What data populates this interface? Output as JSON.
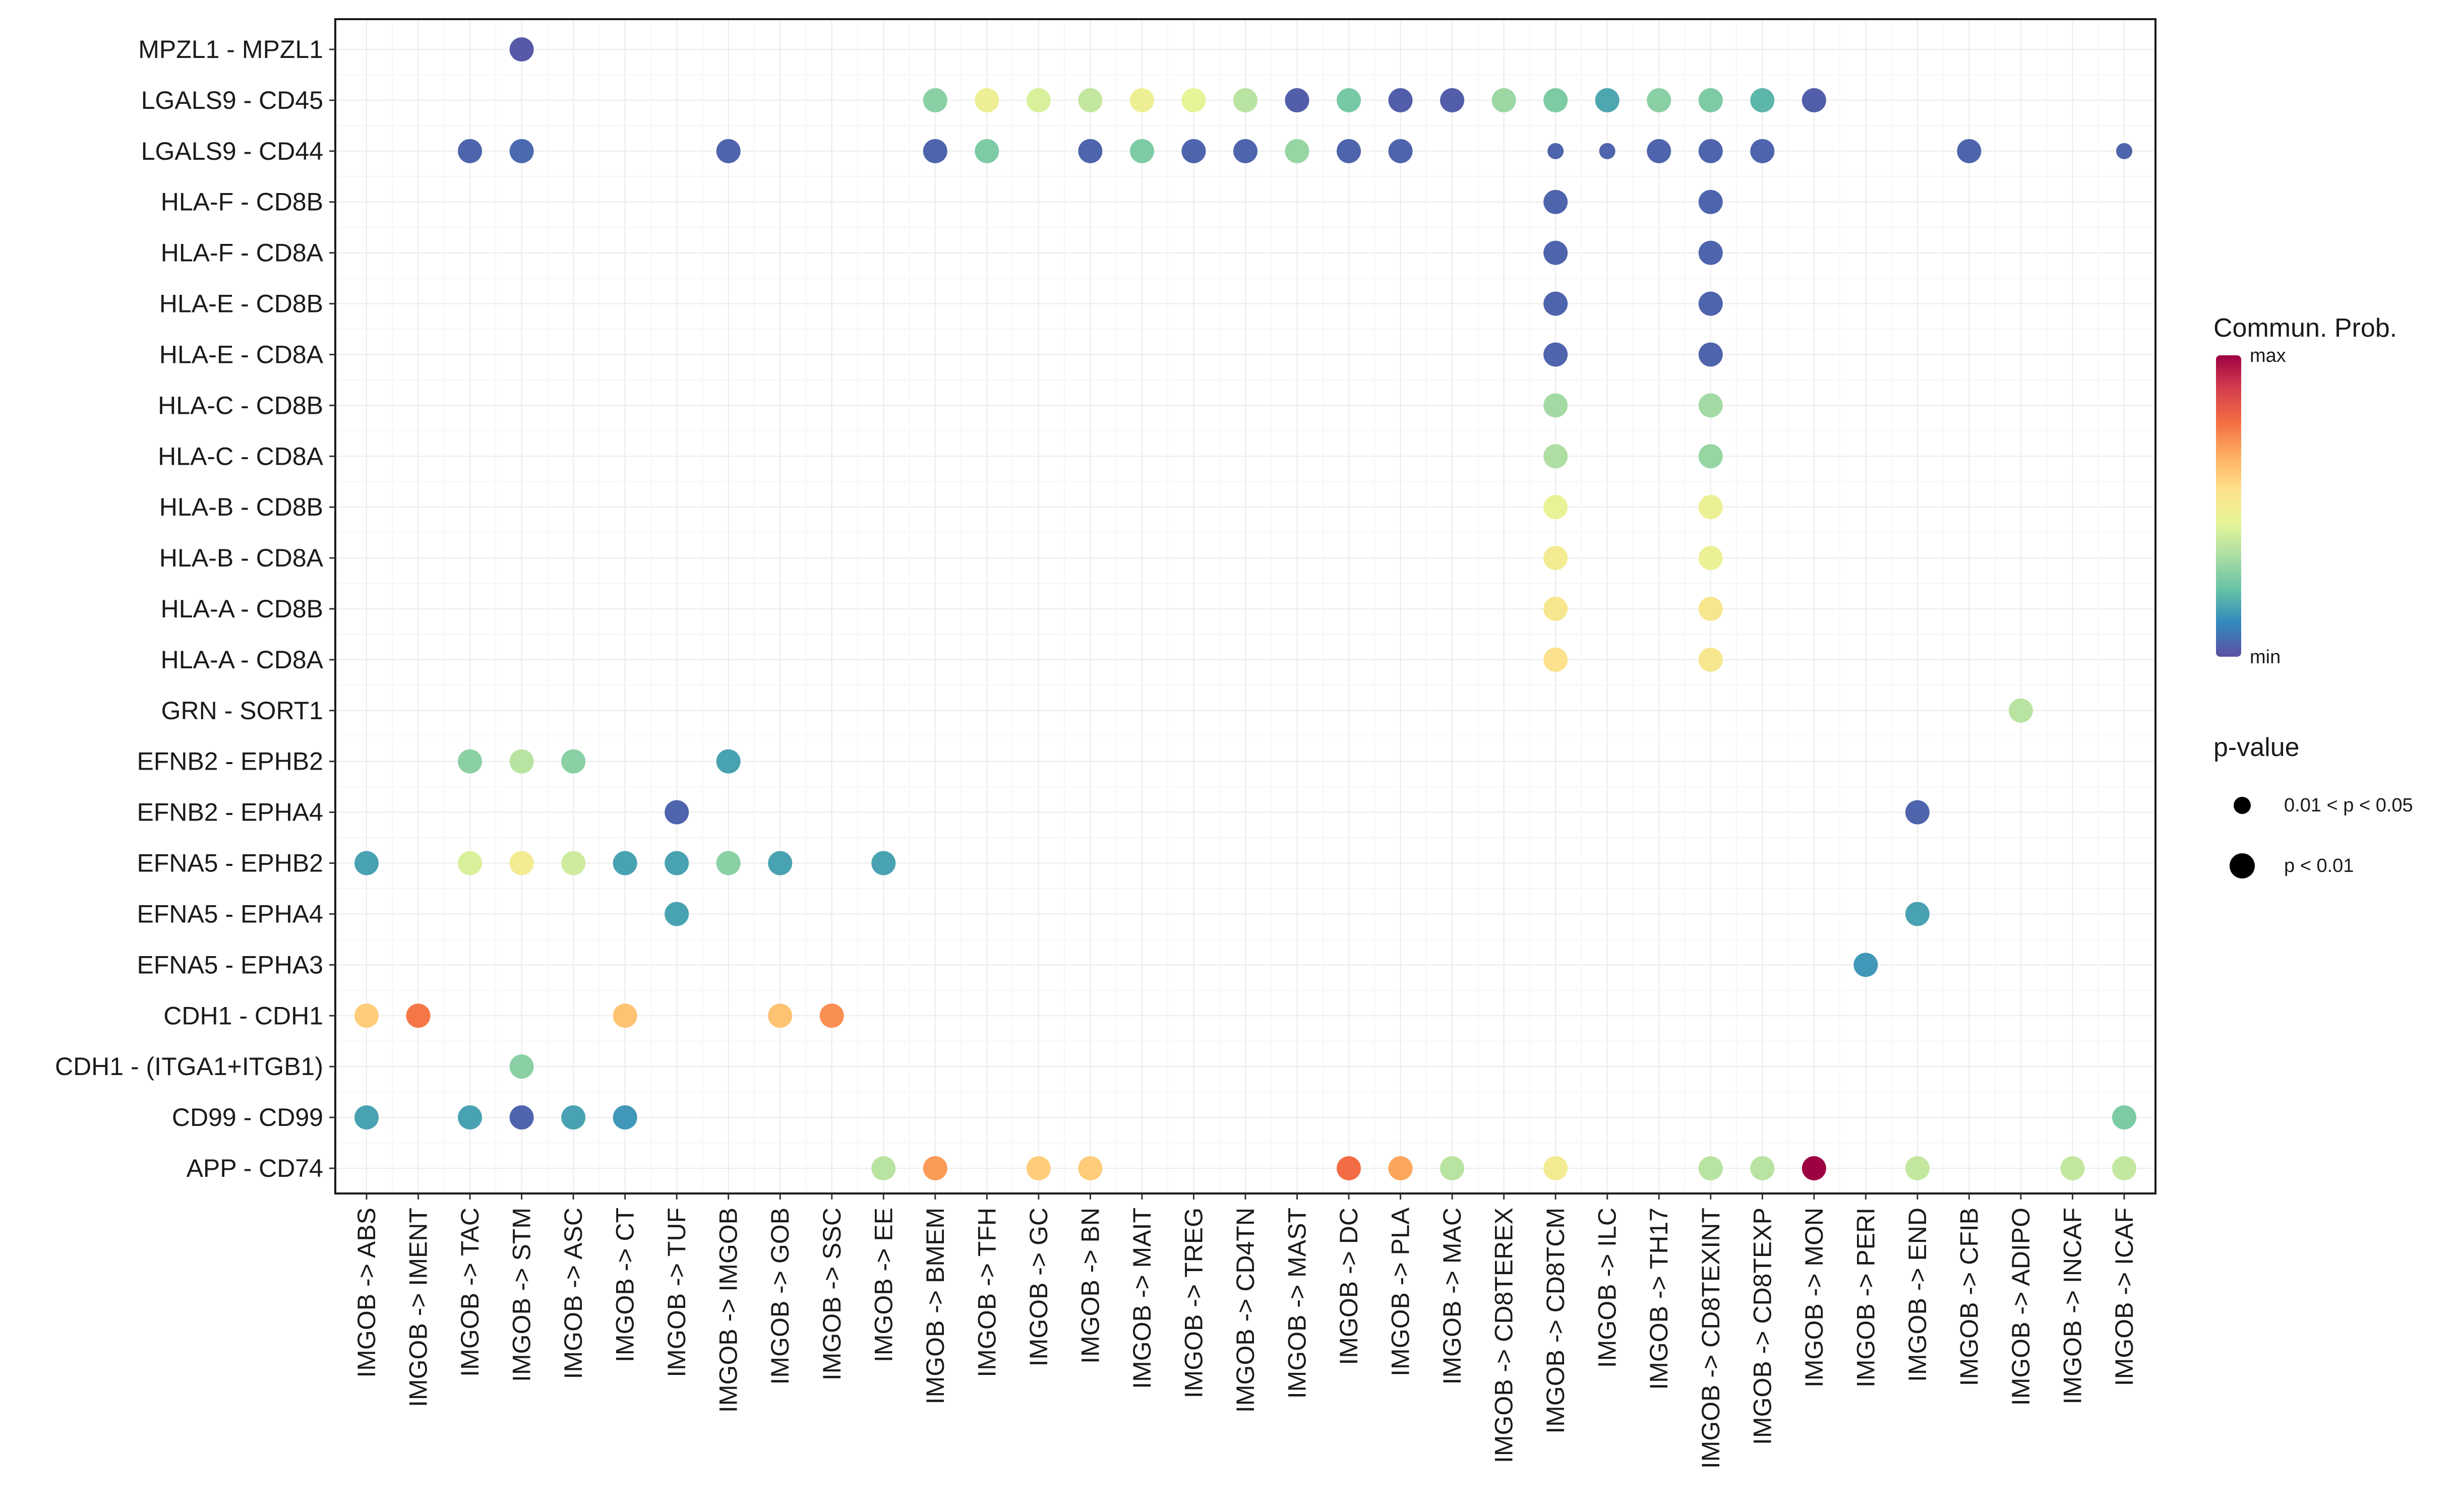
{
  "chart_data": {
    "type": "dot",
    "rows": [
      "MPZL1 - MPZL1",
      "LGALS9 - CD45",
      "LGALS9 - CD44",
      "HLA-F - CD8B",
      "HLA-F - CD8A",
      "HLA-E - CD8B",
      "HLA-E - CD8A",
      "HLA-C - CD8B",
      "HLA-C - CD8A",
      "HLA-B - CD8B",
      "HLA-B - CD8A",
      "HLA-A - CD8B",
      "HLA-A - CD8A",
      "GRN - SORT1",
      "EFNB2 - EPHB2",
      "EFNB2 - EPHA4",
      "EFNA5 - EPHB2",
      "EFNA5 - EPHA4",
      "EFNA5 - EPHA3",
      "CDH1 - CDH1",
      "CDH1 - (ITGA1+ITGB1)",
      "CD99 - CD99",
      "APP - CD74"
    ],
    "columns": [
      "IMGOB -> ABS",
      "IMGOB -> IMENT",
      "IMGOB -> TAC",
      "IMGOB -> STM",
      "IMGOB -> ASC",
      "IMGOB -> CT",
      "IMGOB -> TUF",
      "IMGOB -> IMGOB",
      "IMGOB -> GOB",
      "IMGOB -> SSC",
      "IMGOB -> EE",
      "IMGOB -> BMEM",
      "IMGOB -> TFH",
      "IMGOB -> GC",
      "IMGOB -> BN",
      "IMGOB -> MAIT",
      "IMGOB -> TREG",
      "IMGOB -> CD4TN",
      "IMGOB -> MAST",
      "IMGOB -> DC",
      "IMGOB -> PLA",
      "IMGOB -> MAC",
      "IMGOB -> CD8TEREX",
      "IMGOB -> CD8TCM",
      "IMGOB -> ILC",
      "IMGOB -> TH17",
      "IMGOB -> CD8TEXINT",
      "IMGOB -> CD8TEXP",
      "IMGOB -> MON",
      "IMGOB -> PERI",
      "IMGOB -> END",
      "IMGOB -> CFIB",
      "IMGOB -> ADIPO",
      "IMGOB -> INCAF",
      "IMGOB -> ICAF"
    ],
    "points": [
      {
        "row": 0,
        "col": 3,
        "prob": 0.02,
        "p": "<0.01"
      },
      {
        "row": 1,
        "col": 11,
        "prob": 0.28,
        "p": "<0.01"
      },
      {
        "row": 1,
        "col": 12,
        "prob": 0.48,
        "p": "<0.01"
      },
      {
        "row": 1,
        "col": 13,
        "prob": 0.42,
        "p": "<0.01"
      },
      {
        "row": 1,
        "col": 14,
        "prob": 0.38,
        "p": "<0.01"
      },
      {
        "row": 1,
        "col": 15,
        "prob": 0.48,
        "p": "<0.01"
      },
      {
        "row": 1,
        "col": 16,
        "prob": 0.45,
        "p": "<0.01"
      },
      {
        "row": 1,
        "col": 17,
        "prob": 0.36,
        "p": "<0.01"
      },
      {
        "row": 1,
        "col": 18,
        "prob": 0.03,
        "p": "<0.01"
      },
      {
        "row": 1,
        "col": 19,
        "prob": 0.25,
        "p": "<0.01"
      },
      {
        "row": 1,
        "col": 20,
        "prob": 0.03,
        "p": "<0.01"
      },
      {
        "row": 1,
        "col": 21,
        "prob": 0.03,
        "p": "<0.01"
      },
      {
        "row": 1,
        "col": 22,
        "prob": 0.31,
        "p": "<0.01"
      },
      {
        "row": 1,
        "col": 23,
        "prob": 0.26,
        "p": "<0.01"
      },
      {
        "row": 1,
        "col": 24,
        "prob": 0.17,
        "p": "<0.01"
      },
      {
        "row": 1,
        "col": 25,
        "prob": 0.28,
        "p": "<0.01"
      },
      {
        "row": 1,
        "col": 26,
        "prob": 0.26,
        "p": "<0.01"
      },
      {
        "row": 1,
        "col": 27,
        "prob": 0.2,
        "p": "<0.01"
      },
      {
        "row": 1,
        "col": 28,
        "prob": 0.03,
        "p": "<0.01"
      },
      {
        "row": 2,
        "col": 2,
        "prob": 0.04,
        "p": "<0.01"
      },
      {
        "row": 2,
        "col": 3,
        "prob": 0.05,
        "p": "<0.01"
      },
      {
        "row": 2,
        "col": 7,
        "prob": 0.04,
        "p": "<0.01"
      },
      {
        "row": 2,
        "col": 11,
        "prob": 0.04,
        "p": "<0.01"
      },
      {
        "row": 2,
        "col": 12,
        "prob": 0.26,
        "p": "<0.01"
      },
      {
        "row": 2,
        "col": 14,
        "prob": 0.04,
        "p": "<0.01"
      },
      {
        "row": 2,
        "col": 15,
        "prob": 0.26,
        "p": "<0.01"
      },
      {
        "row": 2,
        "col": 16,
        "prob": 0.04,
        "p": "<0.01"
      },
      {
        "row": 2,
        "col": 17,
        "prob": 0.04,
        "p": "<0.01"
      },
      {
        "row": 2,
        "col": 18,
        "prob": 0.3,
        "p": "<0.01"
      },
      {
        "row": 2,
        "col": 19,
        "prob": 0.04,
        "p": "<0.01"
      },
      {
        "row": 2,
        "col": 20,
        "prob": 0.04,
        "p": "<0.01"
      },
      {
        "row": 2,
        "col": 23,
        "prob": 0.04,
        "p": "0.01-0.05"
      },
      {
        "row": 2,
        "col": 24,
        "prob": 0.04,
        "p": "0.01-0.05"
      },
      {
        "row": 2,
        "col": 25,
        "prob": 0.04,
        "p": "<0.01"
      },
      {
        "row": 2,
        "col": 26,
        "prob": 0.04,
        "p": "<0.01"
      },
      {
        "row": 2,
        "col": 27,
        "prob": 0.04,
        "p": "<0.01"
      },
      {
        "row": 2,
        "col": 31,
        "prob": 0.04,
        "p": "<0.01"
      },
      {
        "row": 2,
        "col": 34,
        "prob": 0.04,
        "p": "0.01-0.05"
      },
      {
        "row": 3,
        "col": 23,
        "prob": 0.04,
        "p": "<0.01"
      },
      {
        "row": 3,
        "col": 26,
        "prob": 0.04,
        "p": "<0.01"
      },
      {
        "row": 4,
        "col": 23,
        "prob": 0.04,
        "p": "<0.01"
      },
      {
        "row": 4,
        "col": 26,
        "prob": 0.04,
        "p": "<0.01"
      },
      {
        "row": 5,
        "col": 23,
        "prob": 0.04,
        "p": "<0.01"
      },
      {
        "row": 5,
        "col": 26,
        "prob": 0.04,
        "p": "<0.01"
      },
      {
        "row": 6,
        "col": 23,
        "prob": 0.04,
        "p": "<0.01"
      },
      {
        "row": 6,
        "col": 26,
        "prob": 0.04,
        "p": "<0.01"
      },
      {
        "row": 7,
        "col": 23,
        "prob": 0.32,
        "p": "<0.01"
      },
      {
        "row": 7,
        "col": 26,
        "prob": 0.32,
        "p": "<0.01"
      },
      {
        "row": 8,
        "col": 23,
        "prob": 0.34,
        "p": "<0.01"
      },
      {
        "row": 8,
        "col": 26,
        "prob": 0.3,
        "p": "<0.01"
      },
      {
        "row": 9,
        "col": 23,
        "prob": 0.46,
        "p": "<0.01"
      },
      {
        "row": 9,
        "col": 26,
        "prob": 0.47,
        "p": "<0.01"
      },
      {
        "row": 10,
        "col": 23,
        "prob": 0.5,
        "p": "<0.01"
      },
      {
        "row": 10,
        "col": 26,
        "prob": 0.47,
        "p": "<0.01"
      },
      {
        "row": 11,
        "col": 23,
        "prob": 0.52,
        "p": "<0.01"
      },
      {
        "row": 11,
        "col": 26,
        "prob": 0.52,
        "p": "<0.01"
      },
      {
        "row": 12,
        "col": 23,
        "prob": 0.55,
        "p": "<0.01"
      },
      {
        "row": 12,
        "col": 26,
        "prob": 0.52,
        "p": "<0.01"
      },
      {
        "row": 13,
        "col": 32,
        "prob": 0.36,
        "p": "<0.01"
      },
      {
        "row": 14,
        "col": 2,
        "prob": 0.28,
        "p": "<0.01"
      },
      {
        "row": 14,
        "col": 3,
        "prob": 0.36,
        "p": "<0.01"
      },
      {
        "row": 14,
        "col": 4,
        "prob": 0.28,
        "p": "<0.01"
      },
      {
        "row": 14,
        "col": 7,
        "prob": 0.16,
        "p": "<0.01"
      },
      {
        "row": 15,
        "col": 6,
        "prob": 0.04,
        "p": "<0.01"
      },
      {
        "row": 15,
        "col": 30,
        "prob": 0.04,
        "p": "<0.01"
      },
      {
        "row": 16,
        "col": 0,
        "prob": 0.16,
        "p": "<0.01"
      },
      {
        "row": 16,
        "col": 2,
        "prob": 0.42,
        "p": "<0.01"
      },
      {
        "row": 16,
        "col": 3,
        "prob": 0.5,
        "p": "<0.01"
      },
      {
        "row": 16,
        "col": 4,
        "prob": 0.4,
        "p": "<0.01"
      },
      {
        "row": 16,
        "col": 5,
        "prob": 0.16,
        "p": "<0.01"
      },
      {
        "row": 16,
        "col": 6,
        "prob": 0.16,
        "p": "<0.01"
      },
      {
        "row": 16,
        "col": 7,
        "prob": 0.28,
        "p": "<0.01"
      },
      {
        "row": 16,
        "col": 8,
        "prob": 0.16,
        "p": "<0.01"
      },
      {
        "row": 16,
        "col": 10,
        "prob": 0.16,
        "p": "<0.01"
      },
      {
        "row": 17,
        "col": 6,
        "prob": 0.16,
        "p": "<0.01"
      },
      {
        "row": 17,
        "col": 30,
        "prob": 0.16,
        "p": "<0.01"
      },
      {
        "row": 18,
        "col": 29,
        "prob": 0.14,
        "p": "<0.01"
      },
      {
        "row": 19,
        "col": 0,
        "prob": 0.6,
        "p": "<0.01"
      },
      {
        "row": 19,
        "col": 1,
        "prob": 0.76,
        "p": "<0.01"
      },
      {
        "row": 19,
        "col": 5,
        "prob": 0.62,
        "p": "<0.01"
      },
      {
        "row": 19,
        "col": 8,
        "prob": 0.62,
        "p": "<0.01"
      },
      {
        "row": 19,
        "col": 9,
        "prob": 0.72,
        "p": "<0.01"
      },
      {
        "row": 20,
        "col": 3,
        "prob": 0.28,
        "p": "<0.01"
      },
      {
        "row": 21,
        "col": 0,
        "prob": 0.16,
        "p": "<0.01"
      },
      {
        "row": 21,
        "col": 2,
        "prob": 0.16,
        "p": "<0.01"
      },
      {
        "row": 21,
        "col": 3,
        "prob": 0.04,
        "p": "<0.01"
      },
      {
        "row": 21,
        "col": 4,
        "prob": 0.16,
        "p": "<0.01"
      },
      {
        "row": 21,
        "col": 5,
        "prob": 0.14,
        "p": "<0.01"
      },
      {
        "row": 21,
        "col": 34,
        "prob": 0.26,
        "p": "<0.01"
      },
      {
        "row": 22,
        "col": 10,
        "prob": 0.36,
        "p": "<0.01"
      },
      {
        "row": 22,
        "col": 11,
        "prob": 0.7,
        "p": "<0.01"
      },
      {
        "row": 22,
        "col": 13,
        "prob": 0.6,
        "p": "<0.01"
      },
      {
        "row": 22,
        "col": 14,
        "prob": 0.6,
        "p": "<0.01"
      },
      {
        "row": 22,
        "col": 19,
        "prob": 0.78,
        "p": "<0.01"
      },
      {
        "row": 22,
        "col": 20,
        "prob": 0.68,
        "p": "<0.01"
      },
      {
        "row": 22,
        "col": 21,
        "prob": 0.36,
        "p": "<0.01"
      },
      {
        "row": 22,
        "col": 23,
        "prob": 0.5,
        "p": "<0.01"
      },
      {
        "row": 22,
        "col": 26,
        "prob": 0.36,
        "p": "<0.01"
      },
      {
        "row": 22,
        "col": 27,
        "prob": 0.36,
        "p": "<0.01"
      },
      {
        "row": 22,
        "col": 28,
        "prob": 1.0,
        "p": "<0.01"
      },
      {
        "row": 22,
        "col": 30,
        "prob": 0.38,
        "p": "<0.01"
      },
      {
        "row": 22,
        "col": 33,
        "prob": 0.38,
        "p": "<0.01"
      },
      {
        "row": 22,
        "col": 34,
        "prob": 0.38,
        "p": "<0.01"
      }
    ],
    "legend": {
      "color_title": "Commun. Prob.",
      "color_max": "max",
      "color_min": "min",
      "size_title": "p-value",
      "size_small": "0.01 < p < 0.05",
      "size_large": "p < 0.01"
    },
    "palette": [
      "#5E4FA2",
      "#3288BD",
      "#66C2A5",
      "#ABDDA4",
      "#E6F598",
      "#FEE08B",
      "#FDAE61",
      "#F46D43",
      "#D53E4F",
      "#9E0142"
    ]
  }
}
